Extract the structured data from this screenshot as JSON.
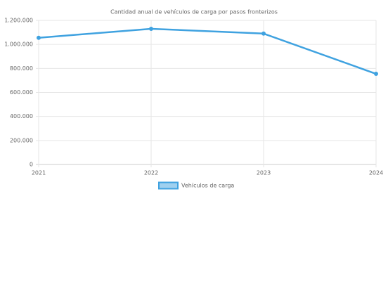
{
  "chart_data": {
    "type": "line",
    "title": "Cantidad anual de vehículos de carga por pasos fronterizos",
    "categories": [
      "2021",
      "2022",
      "2023",
      "2024"
    ],
    "series": [
      {
        "name": "Vehículos de carga",
        "color": "#3fa2e0",
        "values": [
          1055000,
          1130000,
          1090000,
          755000
        ]
      }
    ],
    "ylim": [
      0,
      1200000
    ],
    "yticks": [
      0,
      {
        "value": 200000,
        "label": "200.000"
      },
      {
        "value": 400000,
        "label": "400.000"
      },
      {
        "value": 600000,
        "label": "600.000"
      },
      {
        "value": 800000,
        "label": "800.000"
      },
      {
        "value": 1000000,
        "label": "1.000.000"
      },
      {
        "value": 1200000,
        "label": "1.200.000"
      }
    ],
    "grid": true,
    "legend": "bottom"
  }
}
